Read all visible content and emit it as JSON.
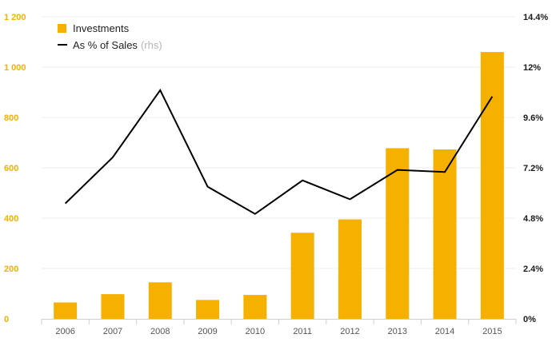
{
  "chart_data": {
    "type": "bar+line",
    "categories": [
      "2006",
      "2007",
      "2008",
      "2009",
      "2010",
      "2011",
      "2012",
      "2013",
      "2014",
      "2015"
    ],
    "series": [
      {
        "name": "Investments",
        "type": "bar",
        "axis": "left",
        "color": "#f5b000",
        "values": [
          65,
          98,
          145,
          75,
          95,
          342,
          395,
          678,
          673,
          1060
        ]
      },
      {
        "name": "As % of Sales",
        "name_suffix": "(rhs)",
        "type": "line",
        "axis": "right",
        "color": "#000000",
        "values": [
          5.5,
          7.7,
          10.9,
          6.3,
          5.0,
          6.6,
          5.7,
          7.1,
          7.0,
          10.6
        ]
      }
    ],
    "y_left": {
      "ylim": [
        0,
        1200
      ],
      "ticks": [
        0,
        200,
        400,
        600,
        800,
        1000,
        1200
      ],
      "tick_labels": [
        "0",
        "200",
        "400",
        "600",
        "800",
        "1 000",
        "1 200"
      ],
      "color": "#f5b000"
    },
    "y_right": {
      "ylim": [
        0,
        14.4
      ],
      "ticks": [
        0,
        2.4,
        4.8,
        7.2,
        9.6,
        12,
        14.4
      ],
      "tick_labels": [
        "0%",
        "2.4%",
        "4.8%",
        "7.2%",
        "9.6%",
        "12%",
        "14.4%"
      ]
    },
    "grid": true,
    "legend_position": "top-left",
    "title": "",
    "xlabel": "",
    "ylabel": ""
  }
}
